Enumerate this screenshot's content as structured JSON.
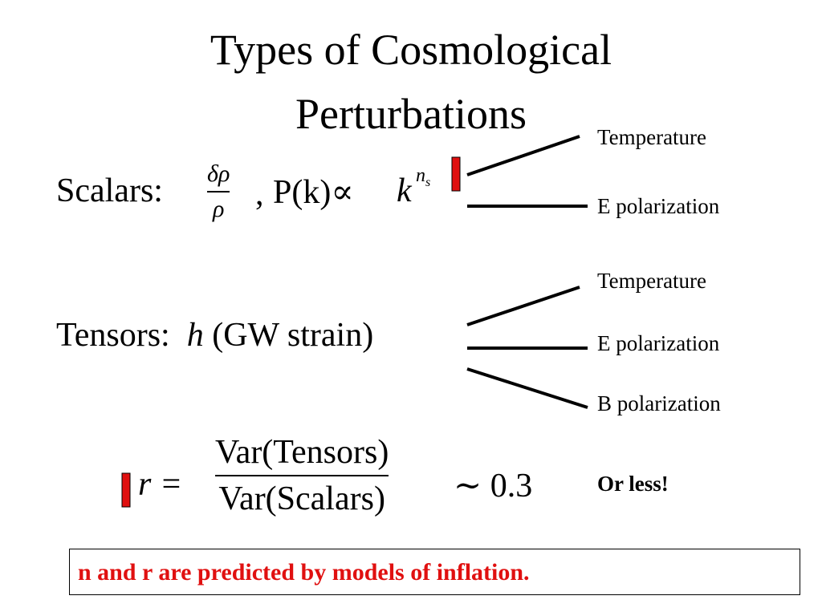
{
  "title": "Types of Cosmological Perturbations",
  "scalars": {
    "label": "Scalars:",
    "numerator": "δρ",
    "denominator": "ρ",
    "comma": ",",
    "power": "P(k)∝",
    "base": "k",
    "exponent": "n",
    "exponent_sub": "s",
    "branches": [
      "Temperature",
      "E polarization"
    ]
  },
  "tensors": {
    "label": "Tensors:",
    "symbol": "h",
    "description": "(GW strain)",
    "branches": [
      "Temperature",
      "E polarization",
      "B polarization"
    ]
  },
  "ratio": {
    "lhs": "r =",
    "numerator": "Var(Tensors)",
    "denominator": "Var(Scalars)",
    "approx": "∼",
    "value": 0.3,
    "note": "Or less!"
  },
  "footer": "n and r are predicted by models of inflation."
}
